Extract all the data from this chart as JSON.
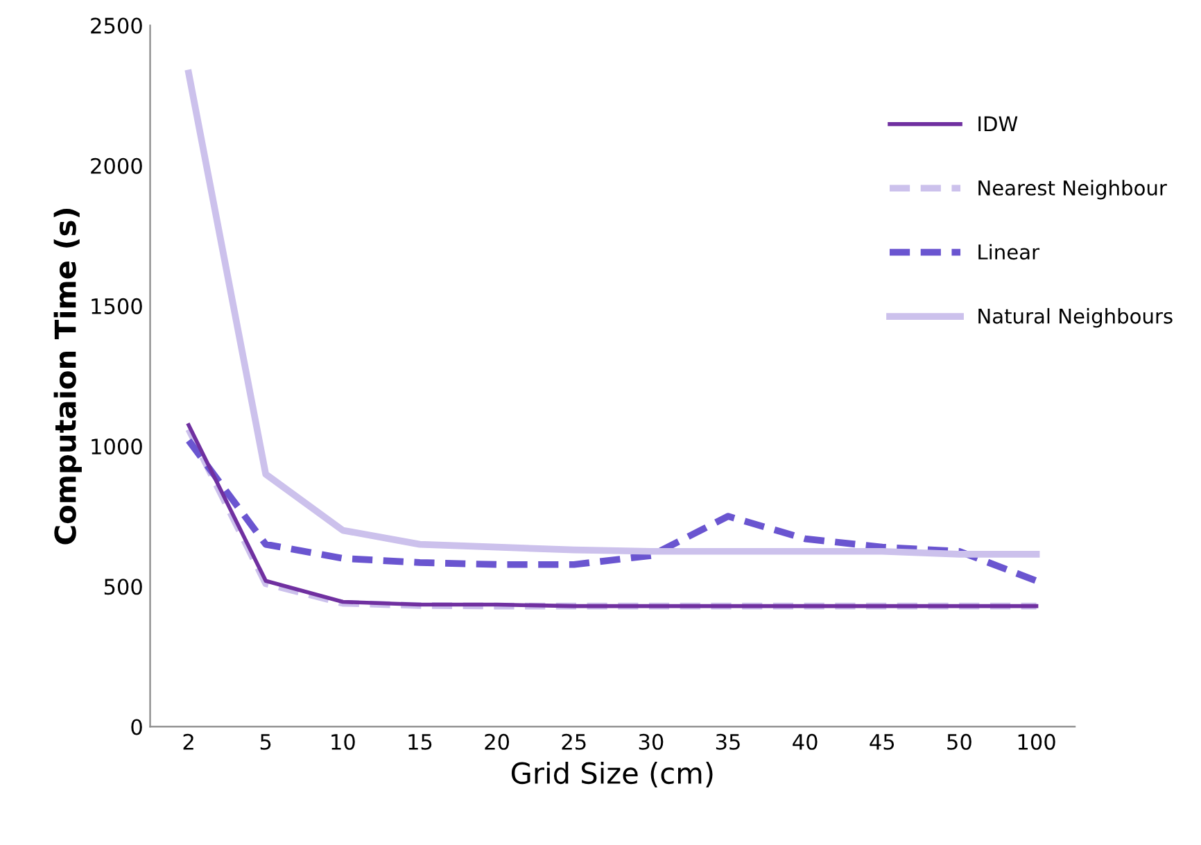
{
  "chart_data": {
    "type": "line",
    "xlabel": "Grid Size (cm)",
    "ylabel": "Computaion Time (s)",
    "categories": [
      "2",
      "5",
      "10",
      "15",
      "20",
      "25",
      "30",
      "35",
      "40",
      "45",
      "50",
      "100"
    ],
    "series": [
      {
        "name": "IDW",
        "color": "#7030a0",
        "line_style": "solid",
        "values": [
          1075,
          520,
          445,
          435,
          435,
          430,
          430,
          430,
          430,
          430,
          430,
          430
        ]
      },
      {
        "name": "Nearest Neighbour",
        "color": "#ccc1ec",
        "line_style": "dashed",
        "values": [
          1060,
          510,
          440,
          432,
          430,
          430,
          430,
          430,
          430,
          430,
          430,
          430
        ]
      },
      {
        "name": "Linear",
        "color": "#6a55d0",
        "line_style": "dashed",
        "values": [
          1020,
          650,
          600,
          585,
          578,
          578,
          610,
          750,
          670,
          640,
          625,
          520
        ]
      },
      {
        "name": "Natural Neighbours",
        "color": "#ccc1ec",
        "line_style": "solid",
        "values": [
          2330,
          900,
          700,
          650,
          640,
          630,
          625,
          625,
          625,
          625,
          615,
          615
        ]
      }
    ],
    "ylim": [
      0,
      2500
    ],
    "yticks": [
      0,
      500,
      1000,
      1500,
      2000,
      2500
    ],
    "grid": false,
    "legend": "right",
    "marker": "none"
  }
}
